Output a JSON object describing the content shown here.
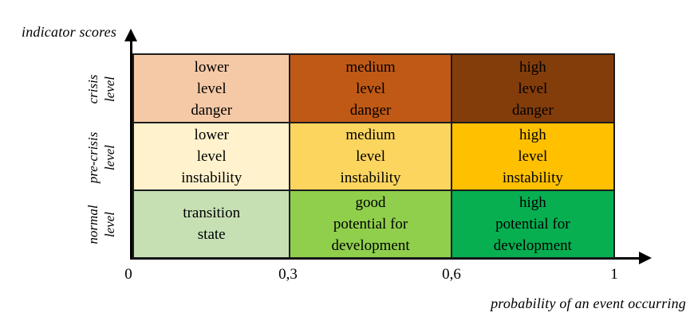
{
  "axes": {
    "y_label": "indicator scores",
    "x_label": "probability of an event occurring",
    "x_ticks": [
      "0",
      "0,3",
      "0,6",
      "1"
    ],
    "axis_color": "#000000",
    "x_range": [
      0,
      1
    ]
  },
  "matrix": {
    "border_color": "#1c1c1c",
    "rows": [
      {
        "label": "crisis\nlevel",
        "cells": [
          {
            "text": "lower\nlevel\ndanger",
            "color": "#F5C9A6"
          },
          {
            "text": "medium\nlevel\ndanger",
            "color": "#C05915"
          },
          {
            "text": "high\nlevel\ndanger",
            "color": "#833D0B"
          }
        ]
      },
      {
        "label": "pre-crisis\nlevel",
        "cells": [
          {
            "text": "lower\nlevel\ninstability",
            "color": "#FFF2CC"
          },
          {
            "text": "medium\nlevel\ninstability",
            "color": "#FCD55F"
          },
          {
            "text": "high\nlevel\ninstability",
            "color": "#FFC000"
          }
        ]
      },
      {
        "label": "normal\nlevel",
        "cells": [
          {
            "text": "transition\nstate",
            "color": "#C6E0B4"
          },
          {
            "text": "good\npotential for\ndevelopment",
            "color": "#90CF4C"
          },
          {
            "text": "high\npotential for\ndevelopment",
            "color": "#07AF51"
          }
        ]
      }
    ]
  }
}
